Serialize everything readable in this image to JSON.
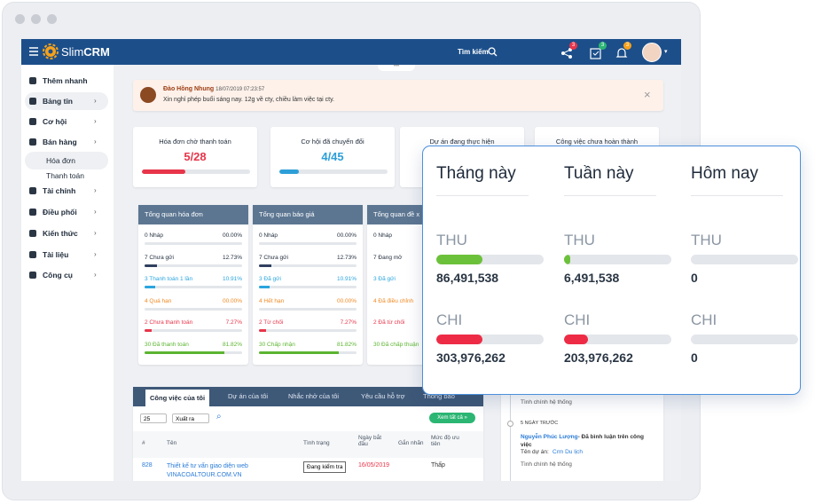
{
  "topbar": {
    "logo_prefix": "Slim",
    "logo_suffix": "CRM",
    "search": "Tìm kiếm",
    "badges": [
      "3",
      "3",
      "3"
    ]
  },
  "sidebar": {
    "items": [
      {
        "label": "Thêm nhanh",
        "sub": false,
        "active": false
      },
      {
        "label": "Bảng tin",
        "sub": false,
        "active": true
      },
      {
        "label": "Cơ hội",
        "sub": false,
        "active": false
      },
      {
        "label": "Bán hàng",
        "sub": false,
        "active": false
      },
      {
        "label": "Hóa đơn",
        "sub": true,
        "active": true
      },
      {
        "label": "Thanh toán",
        "sub": true,
        "active": false
      },
      {
        "label": "Tài chính",
        "sub": false,
        "active": false
      },
      {
        "label": "Điều phối",
        "sub": false,
        "active": false
      },
      {
        "label": "Kiến thức",
        "sub": false,
        "active": false
      },
      {
        "label": "Tài liệu",
        "sub": false,
        "active": false
      },
      {
        "label": "Công cụ",
        "sub": false,
        "active": false
      }
    ]
  },
  "notification": {
    "author": "Đào Hồng Nhung",
    "time": "18/07/2019 07:23:57",
    "message": "Xin nghỉ phép buổi sáng nay. 12g về cty, chiều làm việc tại cty."
  },
  "stat_cards": [
    {
      "title": "Hóa đơn chờ thanh toán",
      "value": "5/28",
      "color": "#e8354a",
      "progress": 40
    },
    {
      "title": "Cơ hội đã chuyển đổi",
      "value": "4/45",
      "color": "#2d9fd8",
      "progress": 18
    },
    {
      "title": "Dự án đang thực hiện"
    },
    {
      "title": "Công việc chưa hoàn thành"
    }
  ],
  "overview": [
    {
      "title": "Tổng quan hóa đơn",
      "rows": [
        {
          "label": "0 Nháp",
          "percent": {
            "value": 0,
            "label": "00.00%"
          },
          "color": "#3a4556"
        },
        {
          "label": "7 Chưa gửi",
          "percent": {
            "value": 12.73,
            "label": "12.73%"
          },
          "color": "#2f3f5e"
        },
        {
          "label": "3 Thanh toán 1 lần",
          "percent": {
            "value": 10.91,
            "label": "10.91%"
          },
          "color": "#2aa5de"
        },
        {
          "label": "4 Quá hạn",
          "percent": {
            "value": 0,
            "label": "00.00%"
          },
          "color": "#f08a24"
        },
        {
          "label": "2 Chưa thanh toán",
          "percent": {
            "value": 7.27,
            "label": "7.27%"
          },
          "color": "#e8354a"
        },
        {
          "label": "30 Đã thanh toán",
          "percent": {
            "value": 81.82,
            "label": "81.82%"
          },
          "color": "#5cb531"
        }
      ]
    },
    {
      "title": "Tổng quan báo giá",
      "rows": [
        {
          "label": "0 Nháp",
          "percent": {
            "value": 0,
            "label": "00.00%"
          },
          "color": "#3a4556"
        },
        {
          "label": "7 Chưa gửi",
          "percent": {
            "value": 12.73,
            "label": "12.73%"
          },
          "color": "#2f3f5e"
        },
        {
          "label": "3 Đã gửi",
          "percent": {
            "value": 10.91,
            "label": "10.91%"
          },
          "color": "#2aa5de"
        },
        {
          "label": "4 Hết hạn",
          "percent": {
            "value": 0,
            "label": "00.00%"
          },
          "color": "#f08a24"
        },
        {
          "label": "2 Từ chối",
          "percent": {
            "value": 7.27,
            "label": "7.27%"
          },
          "color": "#e8354a"
        },
        {
          "label": "30 Chấp nhận",
          "percent": {
            "value": 81.82,
            "label": "81.82%"
          },
          "color": "#5cb531"
        }
      ]
    },
    {
      "title": "Tổng quan đề x",
      "rows": [
        {
          "label": "0 Nháp",
          "color": "#3a4556"
        },
        {
          "label": "7 Đang mở",
          "color": "#2f3f5e"
        },
        {
          "label": "3 Đã gửi",
          "color": "#2aa5de"
        },
        {
          "label": "4 Đã điều chỉnh",
          "color": "#f08a24"
        },
        {
          "label": "2 Đã từ chối",
          "color": "#e8354a"
        },
        {
          "label": "30 Đã chấp thuận",
          "color": "#5cb531"
        }
      ]
    }
  ],
  "tasks": {
    "tabs": [
      "Công việc của tôi",
      "Dự án của tôi",
      "Nhắc nhở của tôi",
      "Yêu cầu hỗ trợ",
      "Thông báo"
    ],
    "page_size": "25",
    "export": "Xuất ra",
    "view_all": "Xem tất cả »",
    "columns": [
      "#",
      "Tên",
      "Tình trạng",
      "Ngày bắt đầu",
      "Gắn nhãn",
      "Mức độ ưu tiên"
    ],
    "rows": [
      {
        "id": "828",
        "name": "Thiết kế tư vấn giao diện web VINACOALTOUR.COM.VN",
        "status": "Đang kiểm tra",
        "start": "16/05/2019",
        "priority": "Thấp"
      }
    ]
  },
  "timeline": {
    "first_note": "Tình chính hệ thống",
    "period": "5 NGÀY TRƯỚC",
    "user": "Nguyễn Phúc Lượng",
    "action": "- Đã bình luận trên công việc",
    "project_label": "Tên dự án:",
    "project": "Crm Du lịch",
    "note": "Tình chính hệ thống"
  },
  "summary": {
    "columns": [
      "Tháng này",
      "Tuần này",
      "Hôm nay"
    ],
    "income_label": "THU",
    "expense_label": "CHI",
    "income": [
      {
        "value": "86,491,538",
        "fill": 43
      },
      {
        "value": "6,491,538",
        "fill": 6
      },
      {
        "value": "0",
        "fill": 0
      }
    ],
    "expense": [
      {
        "value": "303,976,262",
        "fill": 43
      },
      {
        "value": "203,976,262",
        "fill": 22
      },
      {
        "value": "0",
        "fill": 0
      }
    ],
    "income_color": "#6cc13a",
    "expense_color": "#ee2b45"
  }
}
